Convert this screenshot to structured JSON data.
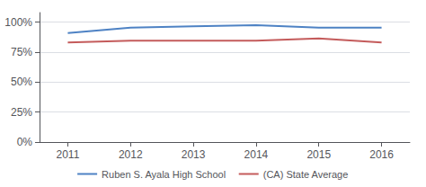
{
  "chart_data": {
    "type": "line",
    "x": [
      2011,
      2012,
      2013,
      2014,
      2015,
      2016
    ],
    "series": [
      {
        "name": "Ruben S. Ayala High School",
        "color": "#4e82c4",
        "values": [
          0.91,
          0.955,
          0.965,
          0.975,
          0.955,
          0.955
        ]
      },
      {
        "name": "(CA) State Average",
        "color": "#c45b5b",
        "values": [
          0.83,
          0.845,
          0.845,
          0.845,
          0.865,
          0.83
        ]
      }
    ],
    "xlim": [
      2010.55,
      2016.45
    ],
    "xticks": [
      2011,
      2012,
      2013,
      2014,
      2015,
      2016
    ],
    "ylim": [
      0.0,
      1.08
    ],
    "yticks": [
      {
        "value": 0.0,
        "label": "0%"
      },
      {
        "value": 0.25,
        "label": "25%"
      },
      {
        "value": 0.5,
        "label": "50%"
      },
      {
        "value": 0.75,
        "label": "75%"
      },
      {
        "value": 1.0,
        "label": "100%"
      }
    ],
    "grid": true,
    "legend": "bottom"
  }
}
